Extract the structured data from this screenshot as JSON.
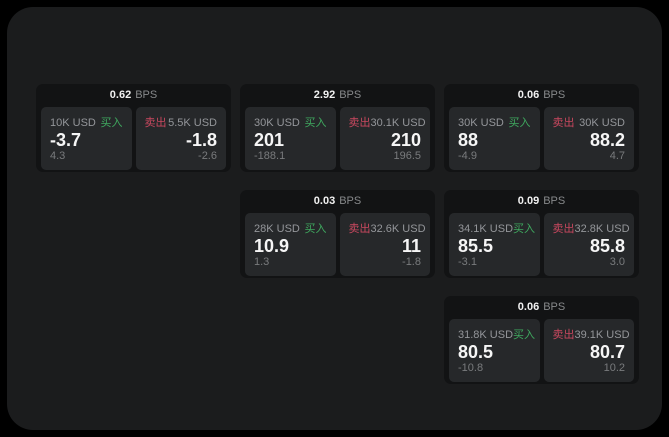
{
  "labels": {
    "bps_suffix": "BPS",
    "buy": "买入",
    "sell": "卖出"
  },
  "colors": {
    "page_bg": "#000000",
    "panel_bg": "#1b1c1d",
    "card_bg": "#121314",
    "tile_bg": "#26282a",
    "buy_green": "#3fa95f",
    "sell_red": "#c9485f",
    "text_primary": "#f6f6f6",
    "text_secondary": "#94969a",
    "text_muted": "#797b7d"
  },
  "cards": [
    {
      "bps": "0.62",
      "buy": {
        "amount": "10K USD",
        "price": "-3.7",
        "delta": "4.3"
      },
      "sell": {
        "amount": "5.5K USD",
        "price": "-1.8",
        "delta": "-2.6"
      }
    },
    {
      "bps": "2.92",
      "buy": {
        "amount": "30K USD",
        "price": "201",
        "delta": "-188.1"
      },
      "sell": {
        "amount": "30.1K USD",
        "price": "210",
        "delta": "196.5"
      }
    },
    {
      "bps": "0.06",
      "buy": {
        "amount": "30K USD",
        "price": "88",
        "delta": "-4.9"
      },
      "sell": {
        "amount": "30K USD",
        "price": "88.2",
        "delta": "4.7"
      }
    },
    {
      "bps": "0.03",
      "buy": {
        "amount": "28K USD",
        "price": "10.9",
        "delta": "1.3"
      },
      "sell": {
        "amount": "32.6K USD",
        "price": "11",
        "delta": "-1.8"
      }
    },
    {
      "bps": "0.09",
      "buy": {
        "amount": "34.1K USD",
        "price": "85.5",
        "delta": "-3.1"
      },
      "sell": {
        "amount": "32.8K USD",
        "price": "85.8",
        "delta": "3.0"
      }
    },
    {
      "bps": "0.06",
      "buy": {
        "amount": "31.8K USD",
        "price": "80.5",
        "delta": "-10.8"
      },
      "sell": {
        "amount": "39.1K USD",
        "price": "80.7",
        "delta": "10.2"
      }
    }
  ]
}
